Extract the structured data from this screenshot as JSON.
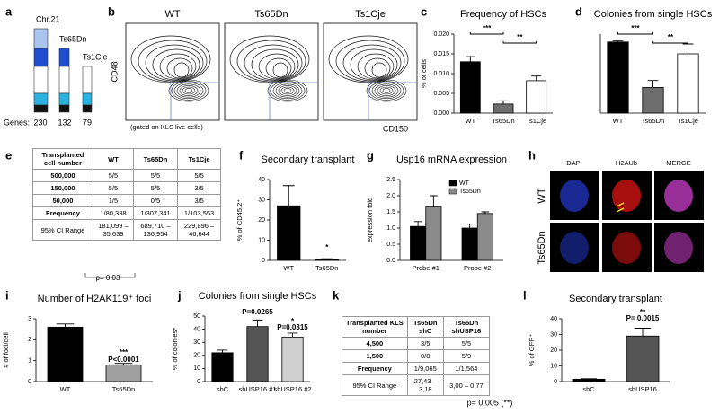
{
  "panel_labels": [
    "a",
    "b",
    "c",
    "d",
    "e",
    "f",
    "g",
    "h",
    "i",
    "j",
    "k",
    "l"
  ],
  "panel_a": {
    "chromosome": "Chr.21",
    "strains": [
      "Ts65Dn",
      "Ts1Cje"
    ],
    "genes_label": "Genes:",
    "gene_counts": [
      "230",
      "132",
      "79"
    ]
  },
  "panel_b": {
    "plots": [
      "WT",
      "Ts65Dn",
      "Ts1Cje"
    ],
    "y_label": "CD48",
    "x_label": "CD150",
    "note": "(gated on KLS live cells)"
  },
  "table_e": {
    "header": [
      "Transplanted cell number",
      "WT",
      "Ts65Dn",
      "Ts1Cje"
    ],
    "rows": [
      [
        "500,000",
        "5/5",
        "5/5",
        "5/5"
      ],
      [
        "150,000",
        "5/5",
        "5/5",
        "3/5"
      ],
      [
        "50,000",
        "1/5",
        "0/5",
        "3/5"
      ],
      [
        "Frequency",
        "1/80,338",
        "1/307,341",
        "1/103,553"
      ],
      [
        "95% CI Range",
        "181,099 – 35,639",
        "689,710 – 136,954",
        "229,896 – 46,644"
      ]
    ],
    "note": "p= 0.03"
  },
  "panel_h": {
    "columns": [
      "DAPI",
      "H2AUb",
      "MERGE"
    ],
    "rows": [
      "WT",
      "Ts65Dn"
    ]
  },
  "table_k": {
    "header": [
      "Transplanted KLS number",
      "Ts65Dn shC",
      "Ts65Dn shUSP16"
    ],
    "rows": [
      [
        "4,500",
        "3/5",
        "5/5"
      ],
      [
        "1,500",
        "0/8",
        "5/9"
      ],
      [
        "Frequency",
        "1/9,065",
        "1/1,564"
      ],
      [
        "95% CI Range",
        "27,43 – 3,18",
        "3,00 – 0,77"
      ]
    ],
    "note": "p= 0.005 (**)"
  },
  "chart_data": [
    {
      "type": "bar",
      "title": "Frequency of HSCs",
      "ylabel": "% of cells",
      "categories": [
        "WT",
        "Ts65Dn",
        "Ts1Cje"
      ],
      "values": [
        0.013,
        0.0023,
        0.0082
      ],
      "errors": [
        0.0013,
        0.0008,
        0.0012
      ],
      "colors": [
        "#000000",
        "#6e6e6e",
        "#ffffff"
      ],
      "ylim": [
        0,
        0.02
      ],
      "yticks": [
        {
          "value": 0,
          "label": "0.000"
        },
        {
          "value": 0.005,
          "label": "0.005"
        },
        {
          "value": 0.01,
          "label": "0.010"
        },
        {
          "value": 0.015,
          "label": "0.015"
        },
        {
          "value": 0.02,
          "label": "0.020"
        }
      ],
      "annotations": [
        "***",
        "**"
      ]
    },
    {
      "type": "bar",
      "title": "Colonies from single HSCs",
      "categories": [
        "WT",
        "Ts65Dn",
        "Ts1Cje"
      ],
      "values": [
        0.72,
        0.26,
        0.6
      ],
      "errors": [
        0.01,
        0.07,
        0.1
      ],
      "colors": [
        "#000000",
        "#6e6e6e",
        "#ffffff"
      ],
      "ylim": [
        0,
        0.8
      ],
      "annotations": [
        "***",
        "**"
      ]
    },
    {
      "type": "bar",
      "title": "Secondary transplant",
      "ylabel": "% of CD45.2⁺",
      "categories": [
        "WT",
        "Ts65Dn"
      ],
      "values": [
        27,
        0.5
      ],
      "errors": [
        10,
        0.3
      ],
      "colors": [
        "#000000",
        "#000000"
      ],
      "ylim": [
        0,
        40
      ],
      "yticks": [
        0,
        10,
        20,
        30,
        40
      ],
      "annotations": [
        "*"
      ]
    },
    {
      "type": "bar",
      "title": "Usp16 mRNA expression",
      "ylabel": "expression fold",
      "categories": [
        "Probe #1",
        "Probe #2"
      ],
      "series": [
        {
          "name": "WT",
          "color": "#000000",
          "values": [
            1.05,
            1.0
          ],
          "errors": [
            0.15,
            0.12
          ]
        },
        {
          "name": "Ts65Dn",
          "color": "#8a8a8a",
          "values": [
            1.65,
            1.45
          ],
          "errors": [
            0.35,
            0.05
          ]
        }
      ],
      "ylim": [
        0,
        2.5
      ],
      "yticks": [
        {
          "value": 0,
          "label": "0.0"
        },
        {
          "value": 0.5,
          "label": "0.5"
        },
        {
          "value": 1,
          "label": "1.0"
        },
        {
          "value": 1.5,
          "label": "1.5"
        },
        {
          "value": 2,
          "label": "2.0"
        },
        {
          "value": 2.5,
          "label": "2.5"
        }
      ]
    },
    {
      "type": "bar",
      "title": "Number of H2AK119⁺ foci",
      "ylabel": "# of foci/cell",
      "categories": [
        "WT",
        "Ts65Dn"
      ],
      "values": [
        2.6,
        0.8
      ],
      "errors": [
        0.15,
        0.07
      ],
      "colors": [
        "#000000",
        "#a0a0a0"
      ],
      "ylim": [
        0,
        3
      ],
      "yticks": [
        0,
        1,
        2,
        3
      ],
      "annotations": [
        "***",
        "P<0.0001"
      ]
    },
    {
      "type": "bar",
      "title": "Colonies from single HSCs",
      "ylabel": "% of colonies*",
      "categories": [
        "shC",
        "shUSP16 #1",
        "shUSP16 #2"
      ],
      "values": [
        22,
        42,
        34
      ],
      "errors": [
        2,
        5,
        3
      ],
      "colors": [
        "#000000",
        "#555555",
        "#d0d0d0"
      ],
      "ylim": [
        0,
        50
      ],
      "yticks": [
        0,
        10,
        20,
        30,
        40,
        50
      ],
      "annotations": [
        "P=0.0265",
        "*",
        "P=0.0315"
      ]
    },
    {
      "type": "bar",
      "title": "Secondary transplant",
      "ylabel": "% of GFP⁺",
      "categories": [
        "shC",
        "shUSP16"
      ],
      "values": [
        1.5,
        29
      ],
      "errors": [
        0.3,
        5
      ],
      "colors": [
        "#000000",
        "#555555"
      ],
      "ylim": [
        0,
        40
      ],
      "yticks": [
        0,
        10,
        20,
        30,
        40
      ],
      "annotations": [
        "**",
        "P= 0.0015"
      ]
    }
  ]
}
